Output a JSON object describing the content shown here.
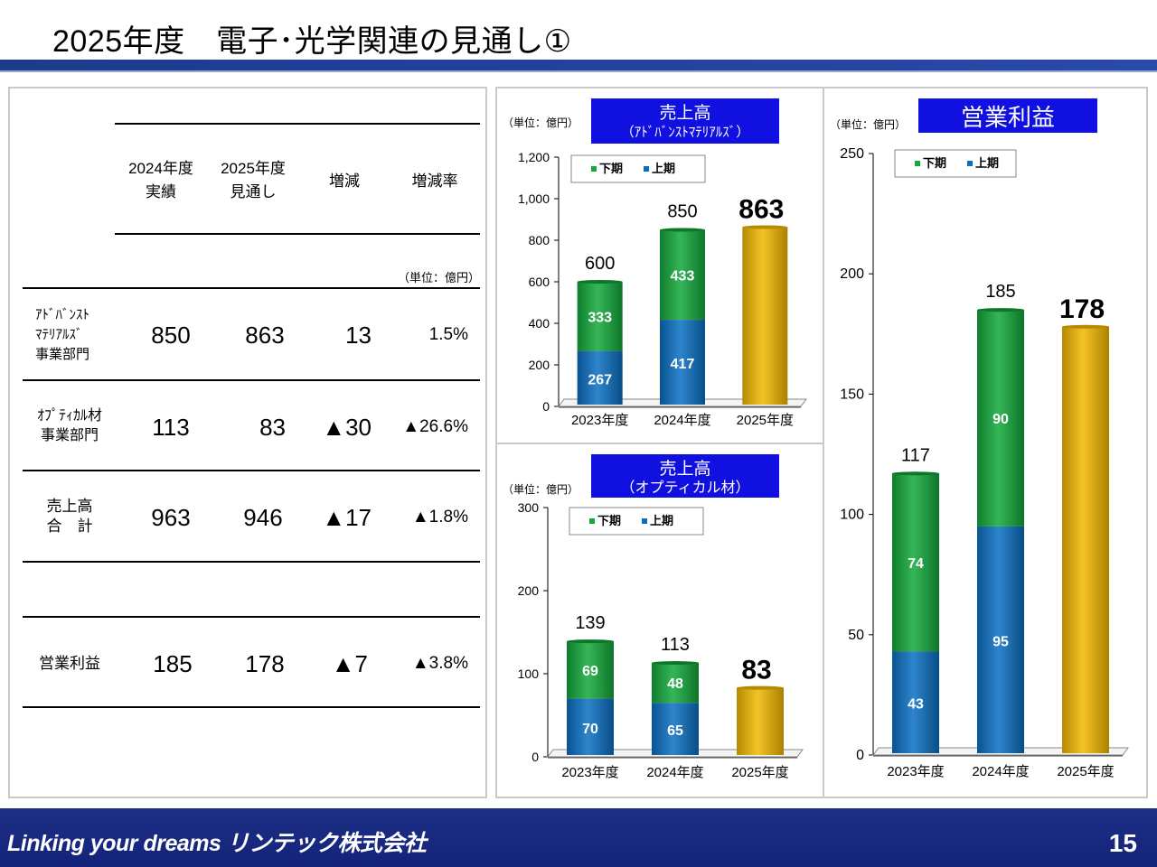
{
  "header": {
    "title": "2025年度　電子･光学関連の見通し①"
  },
  "table": {
    "columns": [
      {
        "line1": "2024年度",
        "line2": "実績"
      },
      {
        "line1": "2025年度",
        "line2": "見通し"
      },
      {
        "line1": "増減",
        "line2": ""
      },
      {
        "line1": "増減率",
        "line2": ""
      }
    ],
    "unit": "（単位：億円）",
    "rows": [
      {
        "label1": "ｱﾄﾞﾊﾞﾝｽﾄ",
        "label2": "ﾏﾃﾘｱﾙｽﾞ",
        "label3": "事業部門",
        "v2024": "850",
        "v2025": "863",
        "diff": "13",
        "rate": "1.5%"
      },
      {
        "label1": "ｵﾌﾟﾃｨｶﾙ材",
        "label2": "事業部門",
        "label3": "",
        "v2024": "113",
        "v2025": "83",
        "diff": "▲30",
        "rate": "▲26.6%"
      },
      {
        "label1": "売上高",
        "label2": "合　計",
        "label3": "",
        "v2024": "963",
        "v2025": "946",
        "diff": "▲17",
        "rate": "▲1.8%"
      },
      {
        "label1": "営業利益",
        "label2": "",
        "label3": "",
        "v2024": "185",
        "v2025": "178",
        "diff": "▲7",
        "rate": "▲3.8%"
      }
    ]
  },
  "colors": {
    "lower": "#0a6fc2",
    "upper": "#12a83a",
    "forecast": "#f2b800",
    "title_box": "#1010e0",
    "header_bar": "#1c3b8c"
  },
  "chart_data": [
    {
      "type": "bar",
      "title_line1": "売上高",
      "title_line2": "（ｱﾄﾞﾊﾞﾝｽﾄﾏﾃﾘｱﾙｽﾞ）",
      "unit": "（単位：億円）",
      "categories": [
        "2023年度",
        "2024年度",
        "2025年度"
      ],
      "ylim": [
        0,
        1200
      ],
      "yticks": [
        "0",
        "200",
        "400",
        "600",
        "800",
        "1,000",
        "1,200"
      ],
      "legend": [
        "下期",
        "上期"
      ],
      "series": [
        {
          "name": "上期",
          "values": [
            267,
            417,
            null
          ]
        },
        {
          "name": "下期",
          "values": [
            333,
            433,
            null
          ]
        }
      ],
      "forecast": [
        null,
        null,
        863
      ],
      "totals": [
        "600",
        "850",
        "863"
      ]
    },
    {
      "type": "bar",
      "title_line1": "売上高",
      "title_line2": "（オプティカル材）",
      "unit": "（単位：億円）",
      "categories": [
        "2023年度",
        "2024年度",
        "2025年度"
      ],
      "ylim": [
        0,
        300
      ],
      "yticks": [
        "0",
        "100",
        "200",
        "300"
      ],
      "legend": [
        "下期",
        "上期"
      ],
      "series": [
        {
          "name": "上期",
          "values": [
            70,
            65,
            null
          ]
        },
        {
          "name": "下期",
          "values": [
            69,
            48,
            null
          ]
        }
      ],
      "forecast": [
        null,
        null,
        83
      ],
      "totals": [
        "139",
        "113",
        "83"
      ]
    },
    {
      "type": "bar",
      "title_line1": "営業利益",
      "title_line2": "",
      "unit": "（単位：億円）",
      "categories": [
        "2023年度",
        "2024年度",
        "2025年度"
      ],
      "ylim": [
        0,
        250
      ],
      "yticks": [
        "0",
        "50",
        "100",
        "150",
        "200",
        "250"
      ],
      "legend": [
        "下期",
        "上期"
      ],
      "series": [
        {
          "name": "上期",
          "values": [
            43,
            95,
            null
          ]
        },
        {
          "name": "下期",
          "values": [
            74,
            90,
            null
          ]
        }
      ],
      "forecast": [
        null,
        null,
        178
      ],
      "totals": [
        "117",
        "185",
        "178"
      ]
    }
  ],
  "footer": {
    "slogan": "Linking your dreams リンテック株式会社",
    "page": "15"
  }
}
